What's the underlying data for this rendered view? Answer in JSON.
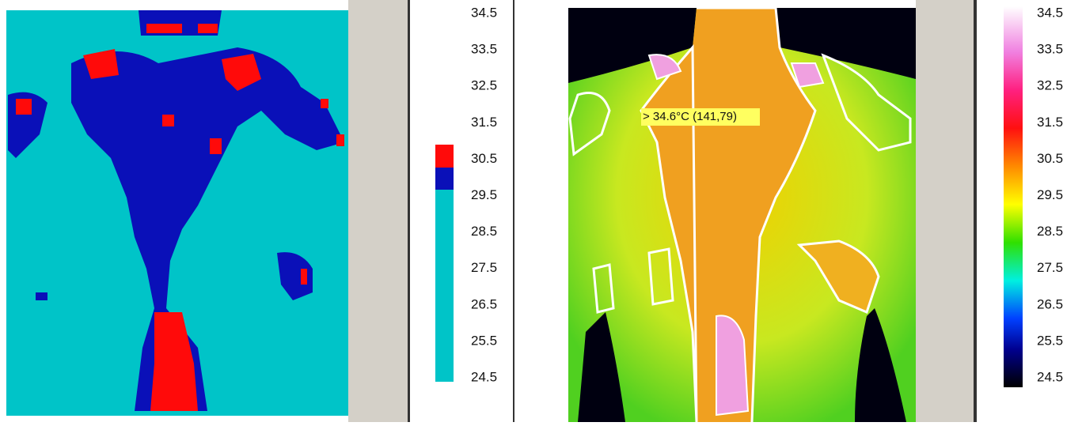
{
  "left_panel": {
    "scale_labels": [
      34.5,
      33.5,
      32.5,
      31.5,
      30.5,
      29.5,
      28.5,
      27.5,
      26.5,
      25.5,
      24.5
    ]
  },
  "right_panel": {
    "scale_labels": [
      34.5,
      33.5,
      32.5,
      31.5,
      30.5,
      29.5,
      28.5,
      27.5,
      26.5,
      25.5,
      24.5
    ],
    "annotation": "> 34.6°C (141,79)"
  }
}
